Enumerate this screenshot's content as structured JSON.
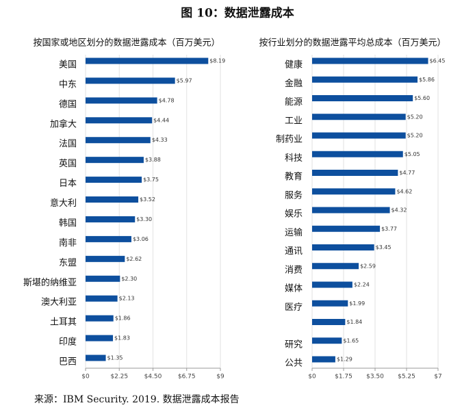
{
  "figure_title": "图 10：数据泄露成本",
  "source": "来源：IBM Security. 2019.  数据泄露成本报告",
  "chart_data": [
    {
      "type": "bar",
      "orientation": "horizontal",
      "title": "按国家或地区划分的数据泄露成本（百万美元）",
      "categories": [
        "美国",
        "中东",
        "德国",
        "加拿大",
        "法国",
        "英国",
        "日本",
        "意大利",
        "韩国",
        "南非",
        "东盟",
        "斯堪的纳维亚",
        "澳大利亚",
        "土耳其",
        "印度",
        "巴西"
      ],
      "values": [
        8.19,
        5.97,
        4.78,
        4.44,
        4.33,
        3.88,
        3.75,
        3.52,
        3.3,
        3.06,
        2.62,
        2.3,
        2.13,
        1.86,
        1.83,
        1.35
      ],
      "value_labels": [
        "$8.19",
        "$5.97",
        "$4.78",
        "$4.44",
        "$4.33",
        "$3.88",
        "$3.75",
        "$3.52",
        "$3.30",
        "$3.06",
        "$2.62",
        "$2.30",
        "$2.13",
        "$1.86",
        "$1.83",
        "$1.35"
      ],
      "color": "#0d4f9e",
      "xlim": [
        0,
        9
      ],
      "xticks": [
        {
          "value": 0,
          "label": "$0"
        },
        {
          "value": 2.25,
          "label": "$2.25"
        },
        {
          "value": 4.5,
          "label": "$4.50"
        },
        {
          "value": 6.75,
          "label": "$6.75"
        },
        {
          "value": 9,
          "label": "$9"
        }
      ],
      "grid": true
    },
    {
      "type": "bar",
      "orientation": "horizontal",
      "title": "按行业划分的数据泄露平均总成本（百万美元）",
      "categories": [
        "健康",
        "金融",
        "能源",
        "工业",
        "制药业",
        "科技",
        "教育",
        "服务",
        "娱乐",
        "运输",
        "通讯",
        "消费",
        "媒体",
        "医疗",
        null,
        "研究",
        "公共"
      ],
      "values": [
        6.45,
        5.86,
        5.6,
        5.2,
        5.2,
        5.05,
        4.77,
        4.62,
        4.32,
        3.77,
        3.45,
        2.59,
        2.24,
        1.99,
        1.84,
        1.65,
        1.29
      ],
      "value_labels": [
        "$6.45",
        "$5.86",
        "$5.60",
        "$5.20",
        "$5.20",
        "$5.05",
        "$4.77",
        "$4.62",
        "$4.32",
        "$3.77",
        "$3.45",
        "$2.59",
        "$2.24",
        "$1.99",
        "$1.84",
        "$1.65",
        "$1.29"
      ],
      "color": "#0d4f9e",
      "xlim": [
        0,
        7
      ],
      "xticks": [
        {
          "value": 0,
          "label": "$0"
        },
        {
          "value": 1.75,
          "label": "$1.75"
        },
        {
          "value": 3.5,
          "label": "$3.50"
        },
        {
          "value": 5.25,
          "label": "$5.25"
        },
        {
          "value": 7,
          "label": "$7"
        }
      ],
      "grid": true
    }
  ]
}
